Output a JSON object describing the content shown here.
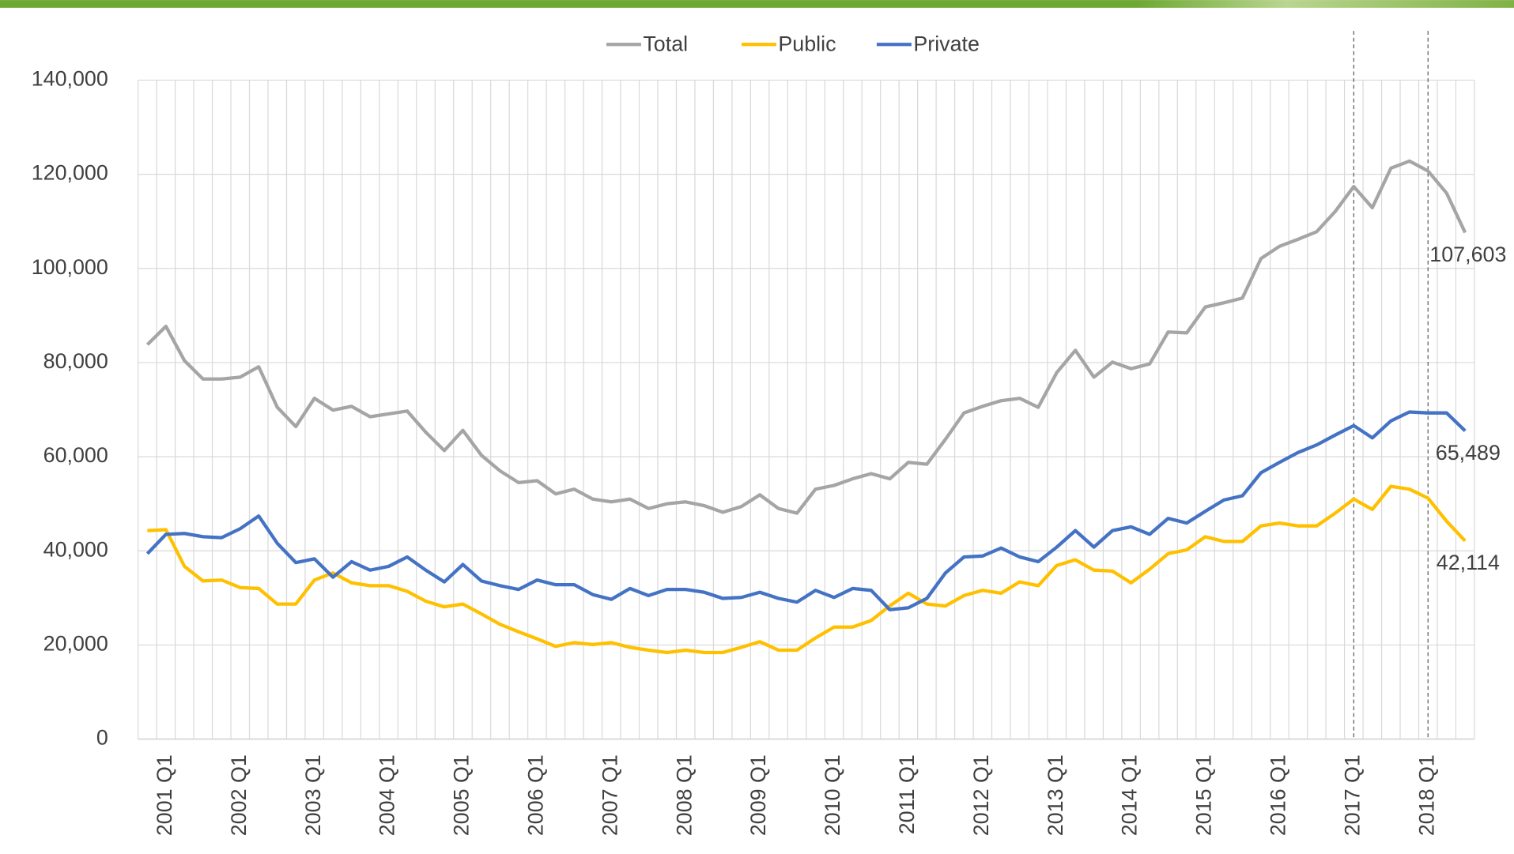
{
  "chart_data": {
    "type": "line",
    "categories": [
      null,
      "2001 Q1",
      null,
      null,
      null,
      "2002 Q1",
      null,
      null,
      null,
      "2003 Q1",
      null,
      null,
      null,
      "2004 Q1",
      null,
      null,
      null,
      "2005 Q1",
      null,
      null,
      null,
      "2006 Q1",
      null,
      null,
      null,
      "2007 Q1",
      null,
      null,
      null,
      "2008 Q1",
      null,
      null,
      null,
      "2009 Q1",
      null,
      null,
      null,
      "2010 Q1",
      null,
      null,
      null,
      "2011 Q1",
      null,
      null,
      null,
      "2012 Q1",
      null,
      null,
      null,
      "2013 Q1",
      null,
      null,
      null,
      "2014 Q1",
      null,
      null,
      null,
      "2015 Q1",
      null,
      null,
      null,
      "2016 Q1",
      null,
      null,
      null,
      "2017 Q1",
      null,
      null,
      null,
      "2018 Q1",
      null,
      null
    ],
    "series": [
      {
        "name": "Total",
        "color": "#a5a5a5",
        "values": [
          83800,
          87700,
          80400,
          76500,
          76500,
          76900,
          79100,
          70500,
          66400,
          72400,
          69900,
          70700,
          68500,
          69100,
          69700,
          65200,
          61300,
          65600,
          60300,
          57000,
          54500,
          54900,
          52100,
          53100,
          51000,
          50400,
          51000,
          49000,
          50000,
          50400,
          49600,
          48200,
          49400,
          51900,
          49000,
          48000,
          53100,
          53900,
          55300,
          56400,
          55300,
          58800,
          58400,
          63700,
          69300,
          70700,
          71900,
          72400,
          70500,
          77900,
          82600,
          76900,
          80100,
          78700,
          79700,
          86500,
          86300,
          91800,
          92700,
          93700,
          102100,
          104700,
          106200,
          107800,
          112100,
          117400,
          112900,
          121300,
          122800,
          120700,
          116000,
          107603
        ],
        "value_labels": [
          null,
          null,
          null,
          null,
          null,
          null,
          null,
          null,
          null,
          null,
          null,
          null,
          null,
          null,
          null,
          null,
          null,
          null,
          null,
          null,
          null,
          null,
          null,
          null,
          null,
          null,
          null,
          null,
          null,
          null,
          null,
          null,
          null,
          null,
          null,
          null,
          null,
          null,
          null,
          null,
          null,
          null,
          null,
          null,
          null,
          null,
          null,
          null,
          null,
          null,
          null,
          null,
          null,
          null,
          null,
          null,
          null,
          null,
          null,
          null,
          null,
          null,
          null,
          null,
          null,
          null,
          null,
          null,
          null,
          null,
          null,
          "107,603"
        ]
      },
      {
        "name": "Public",
        "color": "#ffc000",
        "values": [
          44300,
          44500,
          36700,
          33600,
          33800,
          32200,
          32000,
          28700,
          28700,
          33800,
          35300,
          33200,
          32600,
          32600,
          31400,
          29300,
          28100,
          28700,
          26600,
          24400,
          22800,
          21300,
          19700,
          20500,
          20100,
          20500,
          19500,
          18900,
          18400,
          18900,
          18400,
          18400,
          19500,
          20700,
          18900,
          18900,
          21500,
          23800,
          23800,
          25200,
          28300,
          31000,
          28700,
          28300,
          30500,
          31600,
          31000,
          33400,
          32600,
          36900,
          38100,
          35900,
          35700,
          33200,
          36100,
          39400,
          40200,
          43000,
          42000,
          42000,
          45300,
          45900,
          45300,
          45300,
          48000,
          51000,
          48800,
          53700,
          53100,
          51200,
          46300,
          42114
        ],
        "value_labels": [
          null,
          null,
          null,
          null,
          null,
          null,
          null,
          null,
          null,
          null,
          null,
          null,
          null,
          null,
          null,
          null,
          null,
          null,
          null,
          null,
          null,
          null,
          null,
          null,
          null,
          null,
          null,
          null,
          null,
          null,
          null,
          null,
          null,
          null,
          null,
          null,
          null,
          null,
          null,
          null,
          null,
          null,
          null,
          null,
          null,
          null,
          null,
          null,
          null,
          null,
          null,
          null,
          null,
          null,
          null,
          null,
          null,
          null,
          null,
          null,
          null,
          null,
          null,
          null,
          null,
          null,
          null,
          null,
          null,
          null,
          null,
          "42,114"
        ]
      },
      {
        "name": "Private",
        "color": "#4472c4",
        "values": [
          39400,
          43500,
          43700,
          43000,
          42800,
          44700,
          47400,
          41600,
          37500,
          38300,
          34400,
          37700,
          35900,
          36700,
          38700,
          35900,
          33400,
          37100,
          33600,
          32600,
          31800,
          33800,
          32800,
          32800,
          30700,
          29700,
          32000,
          30500,
          31800,
          31800,
          31200,
          29900,
          30100,
          31200,
          29900,
          29100,
          31600,
          30100,
          32000,
          31600,
          27500,
          27900,
          29900,
          35300,
          38700,
          38900,
          40600,
          38700,
          37700,
          40800,
          44300,
          40800,
          44300,
          45100,
          43500,
          46900,
          45900,
          48400,
          50800,
          51700,
          56600,
          58800,
          60900,
          62500,
          64600,
          66600,
          64000,
          67600,
          69500,
          69300,
          69300,
          65489
        ],
        "value_labels": [
          null,
          null,
          null,
          null,
          null,
          null,
          null,
          null,
          null,
          null,
          null,
          null,
          null,
          null,
          null,
          null,
          null,
          null,
          null,
          null,
          null,
          null,
          null,
          null,
          null,
          null,
          null,
          null,
          null,
          null,
          null,
          null,
          null,
          null,
          null,
          null,
          null,
          null,
          null,
          null,
          null,
          null,
          null,
          null,
          null,
          null,
          null,
          null,
          null,
          null,
          null,
          null,
          null,
          null,
          null,
          null,
          null,
          null,
          null,
          null,
          null,
          null,
          null,
          null,
          null,
          null,
          null,
          null,
          null,
          null,
          null,
          "65,489"
        ]
      }
    ],
    "ylim": [
      0,
      140000
    ],
    "yticks": [
      0,
      {
        "value": 20000,
        "label": "20,000"
      },
      {
        "value": 40000,
        "label": "40,000"
      },
      {
        "value": 60000,
        "label": "60,000"
      },
      {
        "value": 80000,
        "label": "80,000"
      },
      {
        "value": 100000,
        "label": "100,000"
      },
      {
        "value": 120000,
        "label": "120,000"
      },
      {
        "value": 140000,
        "label": "140,000"
      }
    ],
    "grid": true,
    "legend": "top",
    "reference_lines": [
      "2017 Q1",
      "2018 Q1"
    ]
  }
}
